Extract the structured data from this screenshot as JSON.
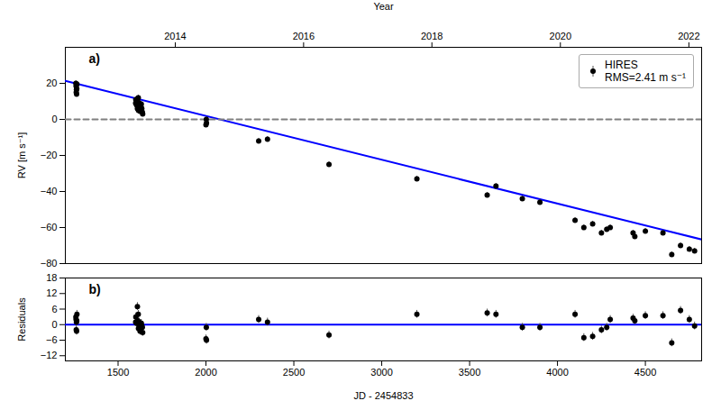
{
  "chart_data": [
    {
      "type": "scatter",
      "x2label": "Year",
      "x2lim": [
        1200,
        4820
      ],
      "x2ticks": [
        {
          "value": 1825.5,
          "label": "2014"
        },
        {
          "value": 2555.5,
          "label": "2016"
        },
        {
          "value": 3285.5,
          "label": "2018"
        },
        {
          "value": 4016.5,
          "label": "2020"
        },
        {
          "value": 4747.5,
          "label": "2022"
        }
      ],
      "ylabel": "RV [m s⁻¹]",
      "xlim": [
        1200,
        4820
      ],
      "ylim": [
        -80,
        40
      ],
      "yticks": [
        -80,
        -60,
        -40,
        -20,
        0,
        20
      ],
      "legend": "upper right",
      "annotations": [
        "a)"
      ],
      "series": [
        {
          "name": "HIRES\nRMS=2.41 m s⁻¹",
          "type": "scatter",
          "color": "#000000",
          "marker": "circle",
          "x": [
            1260,
            1261,
            1262,
            1263,
            1264,
            1265,
            1266,
            1600,
            1601,
            1605,
            1610,
            1612,
            1615,
            1616,
            1618,
            1620,
            1622,
            1625,
            1628,
            1630,
            1632,
            1635,
            1638,
            1640,
            2000,
            2002,
            2003,
            2300,
            2350,
            2700,
            3200,
            3600,
            3650,
            3800,
            3900,
            4100,
            4150,
            4200,
            4250,
            4280,
            4300,
            4430,
            4440,
            4500,
            4600,
            4650,
            4700,
            4750,
            4780
          ],
          "values": [
            20.0,
            18.5,
            15.0,
            16.5,
            14.0,
            17.0,
            19.5,
            9.0,
            11.0,
            8.0,
            6.0,
            10.0,
            12.0,
            5.0,
            7.0,
            9.0,
            8.0,
            4.5,
            5.5,
            7.0,
            8.5,
            6.0,
            4.0,
            3.0,
            -3.0,
            0.0,
            -2.0,
            -12.0,
            -11.0,
            -25.0,
            -33.0,
            -42.0,
            -37.0,
            -44.0,
            -46.0,
            -56.0,
            -60.0,
            -58.0,
            -63.0,
            -61.0,
            -60.0,
            -63.0,
            -65.0,
            -62.0,
            -63.0,
            -75.0,
            -70.0,
            -72.0,
            -73.0
          ],
          "errors": [
            1.5,
            1.5,
            1.5,
            1.5,
            1.5,
            1.5,
            1.5,
            1.5,
            1.5,
            1.5,
            1.5,
            1.5,
            1.5,
            1.5,
            1.5,
            1.5,
            1.5,
            1.5,
            1.5,
            1.5,
            1.5,
            1.5,
            1.5,
            1.5,
            1.5,
            1.5,
            1.5,
            1.5,
            1.5,
            1.5,
            1.5,
            1.5,
            1.5,
            1.5,
            1.5,
            1.5,
            1.5,
            1.5,
            1.5,
            1.5,
            1.5,
            1.5,
            1.5,
            1.5,
            1.5,
            1.5,
            1.5,
            1.5,
            1.5
          ]
        },
        {
          "type": "line",
          "color": "#0000ff",
          "line_style": "solid",
          "x": [
            1200,
            4820
          ],
          "values": [
            21.34,
            -66.626
          ]
        },
        {
          "type": "line",
          "color": "#808080",
          "line_style": "dashed",
          "x": [
            1200,
            4820
          ],
          "values": [
            0,
            0
          ]
        }
      ]
    },
    {
      "type": "scatter",
      "xlabel": "JD - 2454833",
      "ylabel": "Residuals",
      "xlim": [
        1200,
        4820
      ],
      "xticks": [
        1500,
        2000,
        2500,
        3000,
        3500,
        4000,
        4500
      ],
      "ylim": [
        -14,
        18
      ],
      "yticks": [
        -12,
        -6,
        0,
        6,
        12,
        18
      ],
      "annotations": [
        "b)"
      ],
      "series": [
        {
          "type": "scatter",
          "color": "#000000",
          "marker": "circle",
          "x": [
            1260,
            1261,
            1262,
            1263,
            1264,
            1265,
            1266,
            1600,
            1601,
            1605,
            1610,
            1612,
            1615,
            1616,
            1618,
            1620,
            1622,
            1625,
            1628,
            1630,
            1632,
            1635,
            1638,
            1640,
            2000,
            2002,
            2003,
            2300,
            2350,
            2700,
            3200,
            3600,
            3650,
            3800,
            3900,
            4100,
            4150,
            4200,
            4250,
            4280,
            4300,
            4430,
            4440,
            4500,
            4600,
            4650,
            4700,
            4750,
            4780
          ],
          "values": [
            3.0,
            2.0,
            -2.0,
            1.0,
            -2.5,
            1.5,
            4.0,
            1.0,
            3.0,
            0.5,
            7.0,
            1.5,
            4.0,
            -1.5,
            0.5,
            1.0,
            -0.5,
            -2.5,
            -1.5,
            0.5,
            0.5,
            -0.5,
            -1.0,
            -3.0,
            -5.5,
            -1.0,
            -6.0,
            2.0,
            1.0,
            -4.0,
            4.0,
            4.5,
            4.0,
            -1.0,
            -1.0,
            4.0,
            -5.0,
            -4.5,
            -2.0,
            -1.0,
            2.0,
            2.5,
            1.5,
            3.5,
            3.5,
            -7.0,
            5.5,
            2.0,
            -0.5
          ],
          "errors": [
            1.5,
            1.5,
            1.5,
            1.5,
            1.5,
            1.5,
            1.5,
            1.5,
            1.5,
            1.5,
            1.5,
            1.5,
            1.5,
            1.5,
            1.5,
            1.5,
            1.5,
            1.5,
            1.5,
            1.5,
            1.5,
            1.5,
            1.5,
            1.5,
            1.5,
            1.5,
            1.5,
            1.5,
            1.5,
            1.5,
            1.5,
            1.5,
            1.5,
            1.5,
            1.5,
            1.5,
            1.5,
            1.5,
            1.5,
            1.5,
            1.5,
            1.5,
            1.5,
            1.5,
            1.5,
            1.5,
            1.5,
            1.5,
            1.5
          ]
        },
        {
          "type": "line",
          "color": "#0000ff",
          "line_style": "solid",
          "x": [
            1200,
            4820
          ],
          "values": [
            0,
            0
          ]
        }
      ]
    }
  ]
}
